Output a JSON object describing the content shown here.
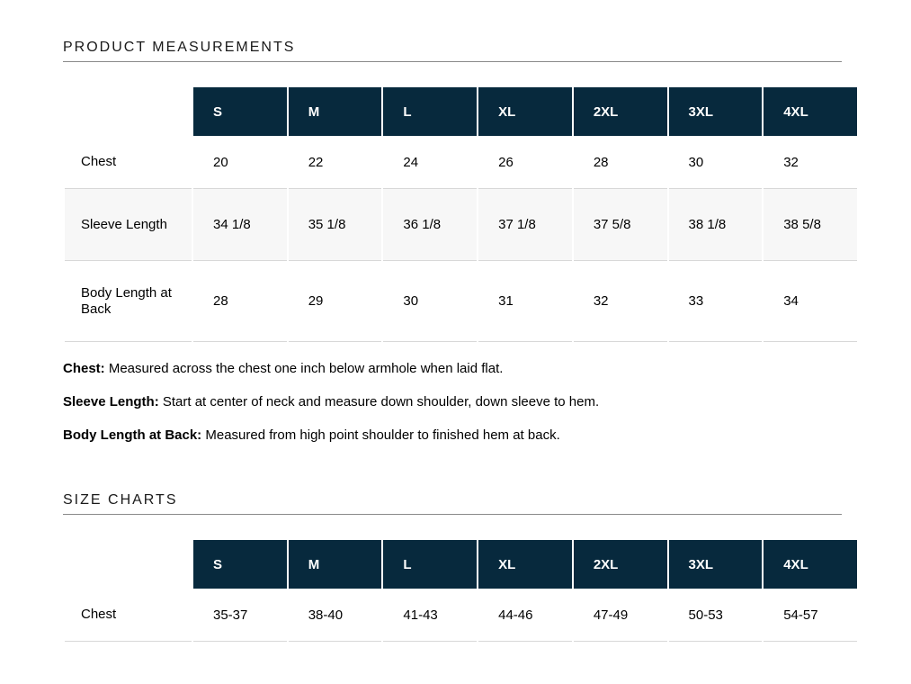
{
  "colors": {
    "header_navy": "#07293d",
    "header_text": "#ffffff",
    "alt_row_bg": "#f7f7f7",
    "row_border": "#d8d8d8",
    "rule_gray": "#8a8a8a"
  },
  "product_measurements": {
    "title": "PRODUCT MEASUREMENTS",
    "table": {
      "columns": [
        "S",
        "M",
        "L",
        "XL",
        "2XL",
        "3XL",
        "4XL"
      ],
      "rows": [
        {
          "label": "Chest",
          "values": [
            "20",
            "22",
            "24",
            "26",
            "28",
            "30",
            "32"
          ]
        },
        {
          "label": "Sleeve Length",
          "values": [
            "34 1/8",
            "35 1/8",
            "36 1/8",
            "37 1/8",
            "37 5/8",
            "38 1/8",
            "38 5/8"
          ]
        },
        {
          "label": "Body Length at Back",
          "values": [
            "28",
            "29",
            "30",
            "31",
            "32",
            "33",
            "34"
          ]
        }
      ]
    },
    "notes": [
      {
        "term": "Chest:",
        "definition": "Measured across the chest one inch below armhole when laid flat."
      },
      {
        "term": "Sleeve Length:",
        "definition": "Start at center of neck and measure down shoulder, down sleeve to hem."
      },
      {
        "term": "Body Length at Back:",
        "definition": "Measured from high point shoulder to finished hem at back."
      }
    ]
  },
  "size_charts": {
    "title": "SIZE CHARTS",
    "table": {
      "columns": [
        "S",
        "M",
        "L",
        "XL",
        "2XL",
        "3XL",
        "4XL"
      ],
      "rows": [
        {
          "label": "Chest",
          "values": [
            "35-37",
            "38-40",
            "41-43",
            "44-46",
            "47-49",
            "50-53",
            "54-57"
          ]
        }
      ]
    }
  }
}
